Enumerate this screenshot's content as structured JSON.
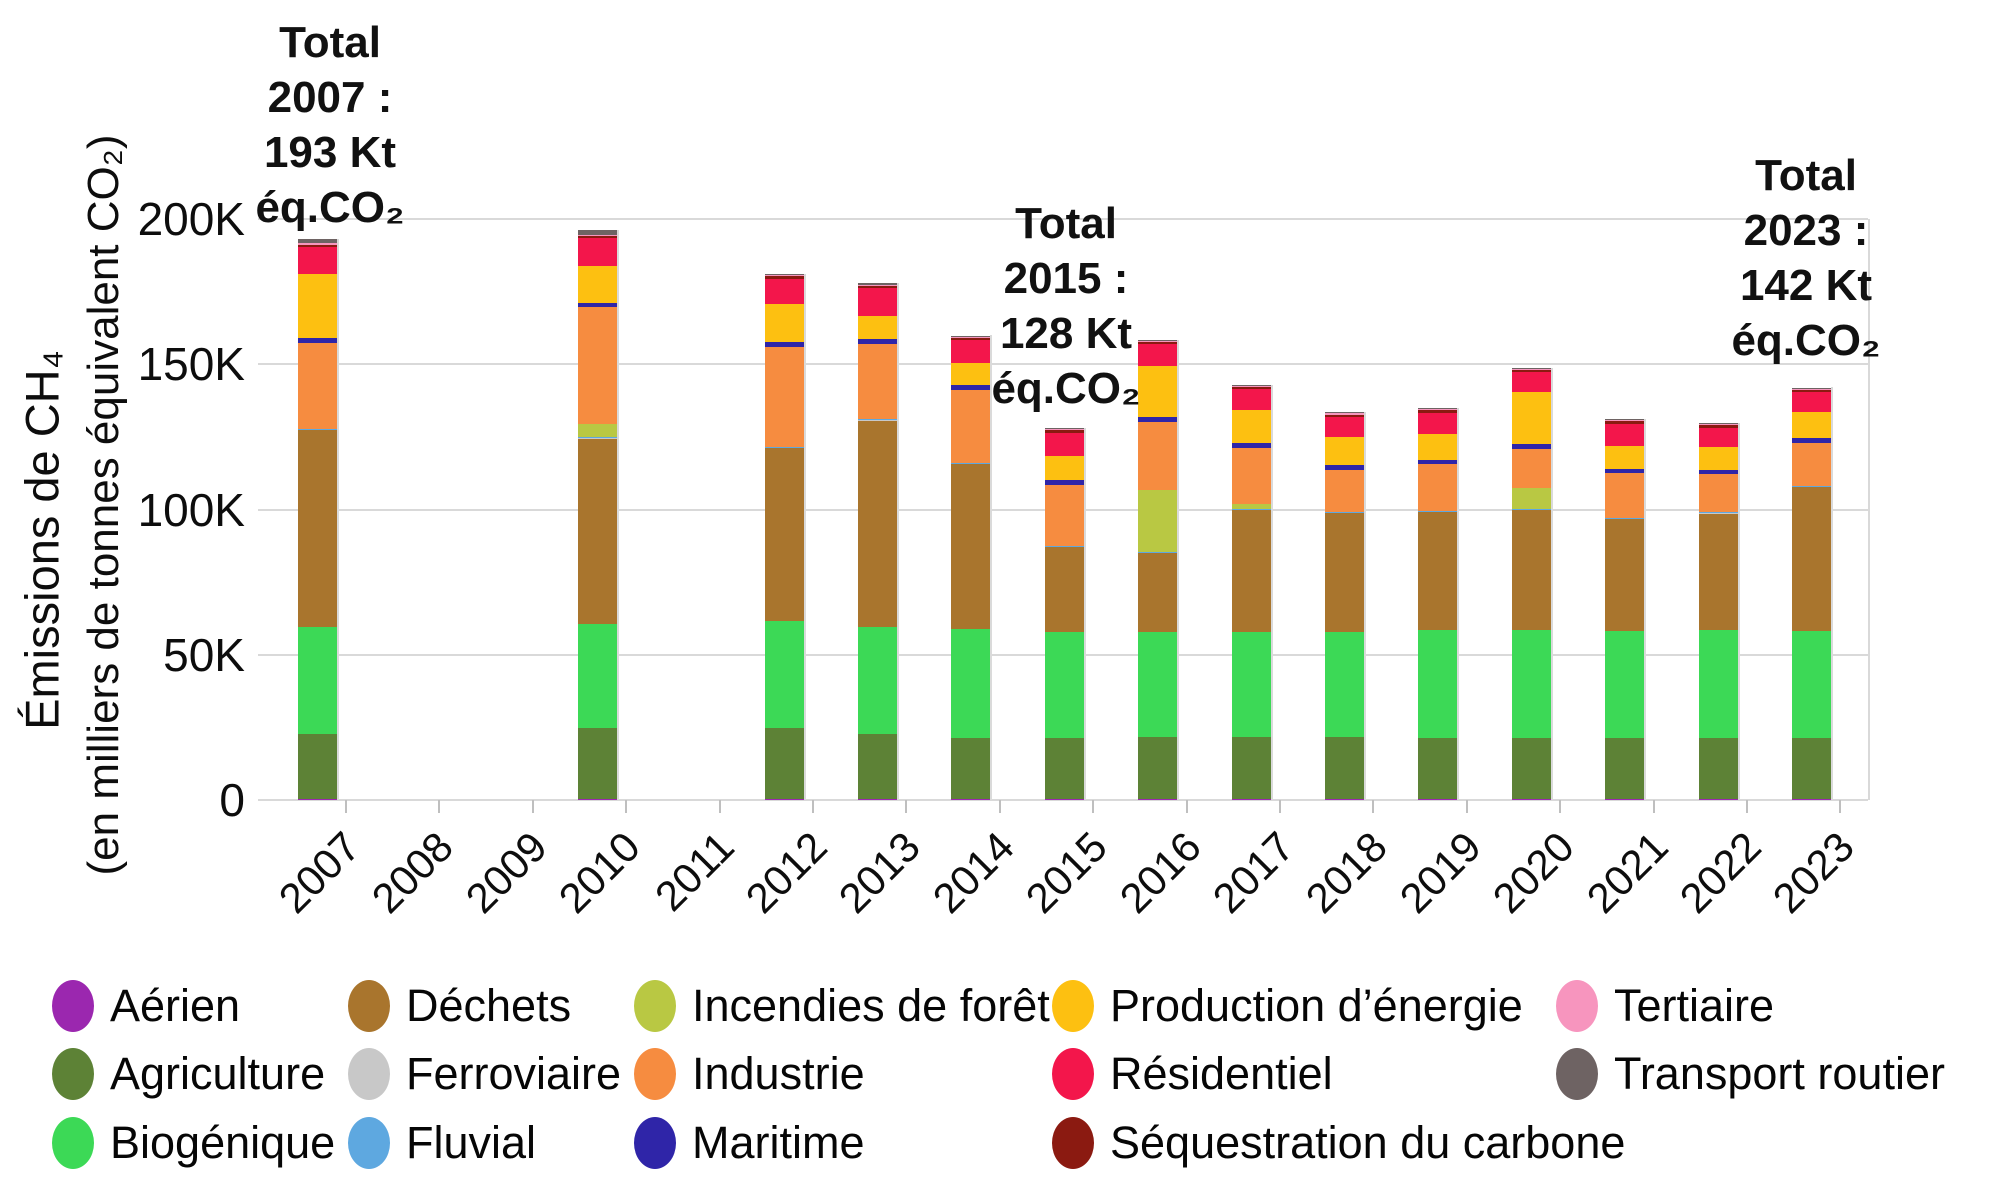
{
  "y_axis": {
    "title_line1": "Émissions de CH₄",
    "title_line2": "(en milliers de tonnes équivalent CO₂)",
    "tick_labels": [
      "0",
      "50K",
      "100K",
      "150K",
      "200K"
    ],
    "tick_values": [
      0,
      50,
      100,
      150,
      200
    ]
  },
  "chart_data": {
    "type": "bar",
    "stacked": true,
    "title": "",
    "xlabel": "",
    "ylabel": "Émissions de CH₄ (en milliers de tonnes équivalent CO₂)",
    "unit": "Kt éq.CO₂",
    "ylim": [
      0,
      210
    ],
    "grid": "horizontal",
    "legend_position": "bottom",
    "categories": [
      "2007",
      "2008",
      "2009",
      "2010",
      "2011",
      "2012",
      "2013",
      "2014",
      "2015",
      "2016",
      "2017",
      "2018",
      "2019",
      "2020",
      "2021",
      "2022",
      "2023"
    ],
    "series": [
      {
        "name": "Aérien",
        "color": "#9b27af",
        "values": [
          0.2,
          0,
          0,
          0.2,
          0,
          0.2,
          0.2,
          0.2,
          0.2,
          0.2,
          0.2,
          0.2,
          0.2,
          0.2,
          0.2,
          0.2,
          0.2
        ]
      },
      {
        "name": "Agriculture",
        "color": "#5d8236",
        "values": [
          22.5,
          0,
          0,
          24.5,
          0,
          24.5,
          22.5,
          21.0,
          21.0,
          21.4,
          21.4,
          21.4,
          21.0,
          21.0,
          21.0,
          21.0,
          21.0
        ]
      },
      {
        "name": "Biogénique",
        "color": "#3cd956",
        "values": [
          37.0,
          0,
          0,
          36.0,
          0,
          37.0,
          37.0,
          37.6,
          36.5,
          36.2,
          36.2,
          36.2,
          37.2,
          37.2,
          36.9,
          37.2,
          36.9
        ]
      },
      {
        "name": "Déchets",
        "color": "#a9752d",
        "values": [
          67.7,
          0,
          0,
          63.7,
          0,
          59.5,
          71.0,
          56.9,
          29.5,
          27.2,
          42.1,
          41.0,
          40.8,
          41.5,
          38.7,
          40.2,
          49.7
        ]
      },
      {
        "name": "Ferroviaire",
        "color": "#c8c8c8",
        "values": [
          0.2,
          0,
          0,
          0.2,
          0,
          0.2,
          0.2,
          0.2,
          0.2,
          0.2,
          0.2,
          0.2,
          0.2,
          0.2,
          0.2,
          0.2,
          0.2
        ]
      },
      {
        "name": "Fluvial",
        "color": "#5ea8e0",
        "values": [
          0.2,
          0,
          0,
          0.2,
          0,
          0.2,
          0.2,
          0.2,
          0.2,
          0.2,
          0.2,
          0.2,
          0.2,
          0.2,
          0.2,
          0.2,
          0.2
        ]
      },
      {
        "name": "Incendies de forêt",
        "color": "#b9c843",
        "values": [
          0,
          0,
          0,
          4.8,
          0,
          0,
          0,
          0,
          0,
          21.4,
          1.7,
          0,
          0,
          7.2,
          0,
          0,
          0
        ]
      },
      {
        "name": "Industrie",
        "color": "#f68c40",
        "values": [
          29.5,
          0,
          0,
          40.0,
          0,
          34.5,
          26.0,
          25.2,
          20.8,
          23.4,
          19.3,
          14.5,
          15.9,
          13.4,
          15.2,
          13.1,
          14.8
        ]
      },
      {
        "name": "Maritime",
        "color": "#2f25a8",
        "values": [
          1.6,
          0,
          0,
          1.6,
          0,
          1.6,
          1.6,
          1.6,
          1.6,
          1.6,
          1.6,
          1.6,
          1.6,
          1.6,
          1.6,
          1.6,
          1.6
        ]
      },
      {
        "name": "Production d’énergie",
        "color": "#fdc011",
        "values": [
          22.0,
          0,
          0,
          12.7,
          0,
          13.0,
          8.0,
          7.6,
          8.5,
          17.7,
          11.4,
          9.7,
          9.0,
          17.9,
          7.9,
          7.9,
          9.0
        ]
      },
      {
        "name": "Résidentiel",
        "color": "#f3164b",
        "values": [
          9.5,
          0,
          0,
          9.5,
          0,
          8.8,
          9.5,
          7.9,
          8.0,
          7.3,
          7.2,
          6.9,
          7.2,
          6.9,
          7.6,
          6.6,
          6.9
        ]
      },
      {
        "name": "Séquestration du carbone",
        "color": "#8b1a11",
        "values": [
          0.8,
          0,
          0,
          0.8,
          0,
          0.8,
          0.8,
          0.8,
          0.8,
          0.8,
          0.8,
          0.8,
          0.8,
          0.8,
          0.8,
          0.8,
          0.8
        ]
      },
      {
        "name": "Tertiaire",
        "color": "#f795be",
        "values": [
          0.4,
          0,
          0,
          0.4,
          0,
          0.4,
          0.4,
          0.4,
          0.4,
          0.4,
          0.4,
          0.4,
          0.4,
          0.4,
          0.4,
          0.4,
          0.4
        ]
      },
      {
        "name": "Transport routier",
        "color": "#6e6363",
        "values": [
          1.5,
          0,
          0,
          1.5,
          0,
          0.4,
          0.4,
          0.3,
          0.3,
          0.3,
          0.3,
          0.3,
          0.3,
          0.3,
          0.3,
          0.3,
          0.3
        ]
      }
    ],
    "annotations": [
      {
        "year": "2007",
        "lines": [
          "Total",
          "2007 :",
          "193 Kt",
          "éq.CO₂"
        ],
        "total_kt": 193
      },
      {
        "year": "2015",
        "lines": [
          "Total",
          "2015 :",
          "128 Kt",
          "éq.CO₂"
        ],
        "total_kt": 128
      },
      {
        "year": "2023",
        "lines": [
          "Total",
          "2023 :",
          "142 Kt",
          "éq.CO₂"
        ],
        "total_kt": 142
      }
    ]
  },
  "legend": {
    "rows": [
      [
        {
          "label": "Aérien",
          "color": "#9b27af"
        },
        {
          "label": "Déchets",
          "color": "#a9752d"
        },
        {
          "label": "Incendies de forêt",
          "color": "#b9c843"
        },
        {
          "label": "Production d’énergie",
          "color": "#fdc011"
        },
        {
          "label": "Tertiaire",
          "color": "#f795be"
        }
      ],
      [
        {
          "label": "Agriculture",
          "color": "#5d8236"
        },
        {
          "label": "Ferroviaire",
          "color": "#c8c8c8"
        },
        {
          "label": "Industrie",
          "color": "#f68c40"
        },
        {
          "label": "Résidentiel",
          "color": "#f3164b"
        },
        {
          "label": "Transport routier",
          "color": "#6e6363"
        }
      ],
      [
        {
          "label": "Biogénique",
          "color": "#3cd956"
        },
        {
          "label": "Fluvial",
          "color": "#5ea8e0"
        },
        {
          "label": "Maritime",
          "color": "#2f25a8"
        },
        {
          "label": "Séquestration du carbone",
          "color": "#8b1a11"
        }
      ]
    ]
  }
}
